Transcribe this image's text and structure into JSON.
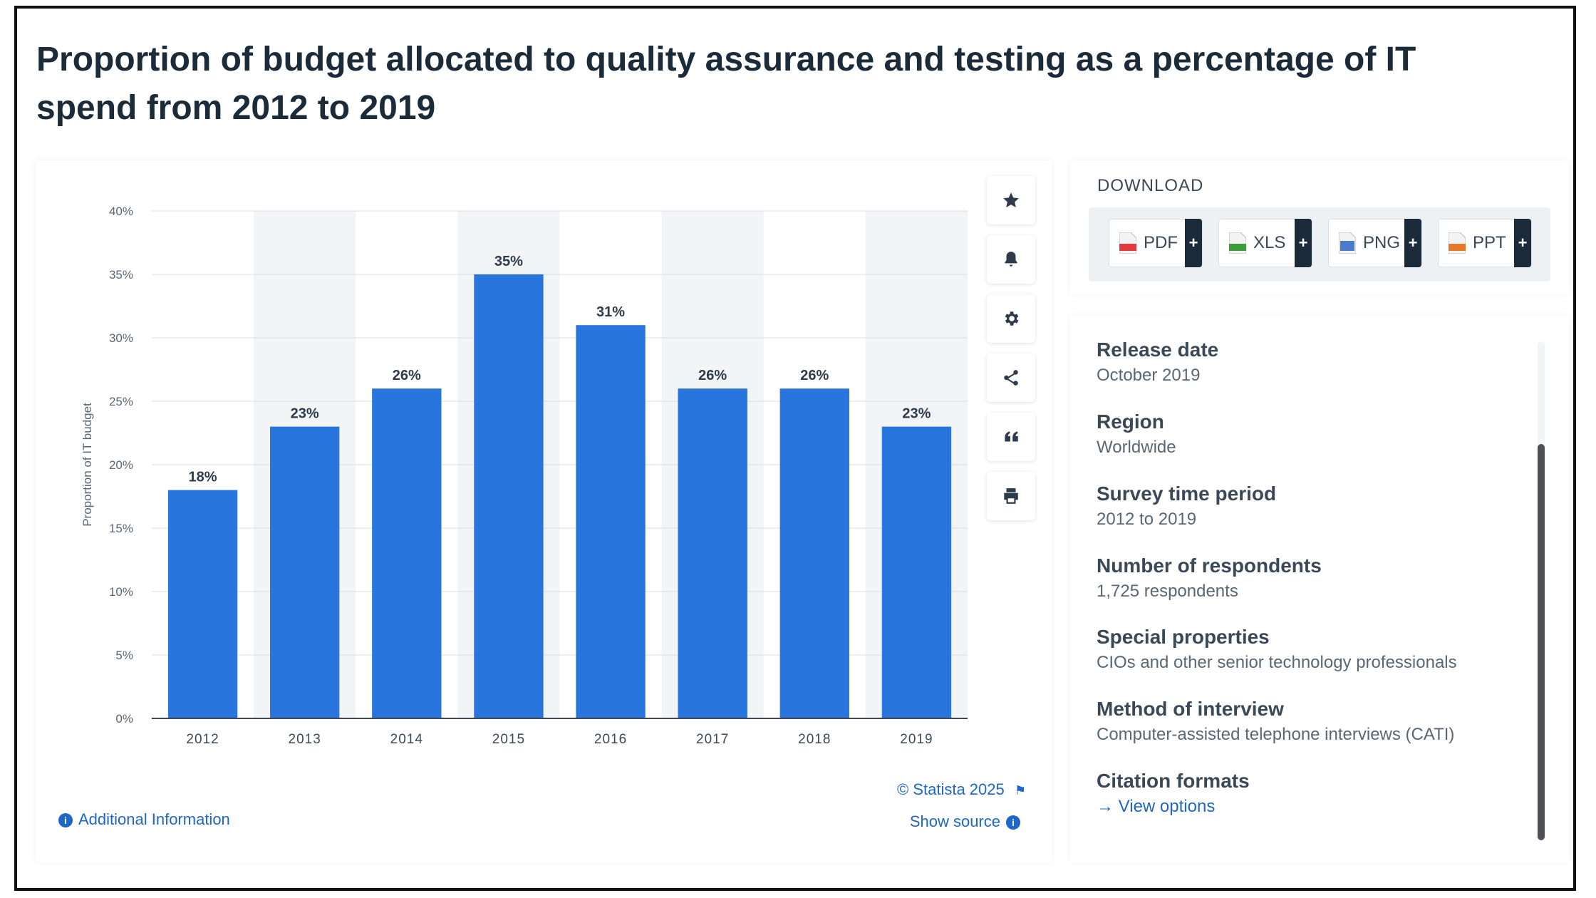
{
  "title": "Proportion of budget allocated to quality assurance and testing as a percentage of IT spend from 2012 to 2019",
  "chart_data": {
    "type": "bar",
    "categories": [
      "2012",
      "2013",
      "2014",
      "2015",
      "2016",
      "2017",
      "2018",
      "2019"
    ],
    "values": [
      18,
      23,
      26,
      35,
      31,
      26,
      26,
      23
    ],
    "data_labels": [
      "18%",
      "23%",
      "26%",
      "35%",
      "31%",
      "26%",
      "26%",
      "23%"
    ],
    "ylabel": "Proportion of IT budget",
    "xlabel": "",
    "ylim": [
      0,
      40
    ],
    "yticks": [
      0,
      5,
      10,
      15,
      20,
      25,
      30,
      35,
      40
    ],
    "ytick_labels": [
      "0%",
      "5%",
      "10%",
      "15%",
      "20%",
      "25%",
      "30%",
      "35%",
      "40%"
    ],
    "grid": true,
    "bar_color": "#2876dd",
    "alt_band_color": "#f3f4f6"
  },
  "toolbar": {
    "icons": [
      "star-icon",
      "bell-icon",
      "gear-icon",
      "share-icon",
      "quote-icon",
      "print-icon"
    ]
  },
  "footer": {
    "credit": "© Statista 2025",
    "show_source": "Show source",
    "additional_info": "Additional Information"
  },
  "download": {
    "title": "DOWNLOAD",
    "buttons": [
      {
        "label": "PDF",
        "color": "#e03b3b"
      },
      {
        "label": "XLS",
        "color": "#3e9c3a"
      },
      {
        "label": "PNG",
        "color": "#4a7cc9"
      },
      {
        "label": "PPT",
        "color": "#e27a2a"
      }
    ],
    "plus": "+"
  },
  "info": {
    "release_date_label": "Release date",
    "release_date": "October 2019",
    "region_label": "Region",
    "region": "Worldwide",
    "survey_period_label": "Survey time period",
    "survey_period": "2012 to 2019",
    "respondents_label": "Number of respondents",
    "respondents": "1,725 respondents",
    "special_label": "Special properties",
    "special": "CIOs and other senior technology professionals",
    "method_label": "Method of interview",
    "method": "Computer-assisted telephone interviews (CATI)",
    "citation_label": "Citation formats",
    "view_options": "View options"
  }
}
